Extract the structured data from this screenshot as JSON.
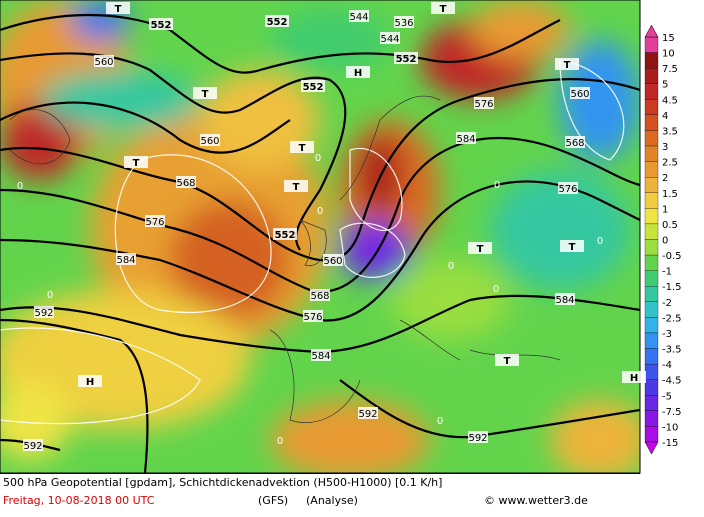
{
  "map": {
    "labels": [
      "552",
      "552",
      "552",
      "552",
      "552",
      "560",
      "560",
      "560",
      "560",
      "568",
      "568",
      "568",
      "576",
      "576",
      "576",
      "576",
      "584",
      "584",
      "584",
      "584",
      "592",
      "592",
      "592",
      "592",
      "544",
      "544",
      "536",
      "T",
      "T",
      "T",
      "T",
      "T",
      "T",
      "T",
      "T",
      "T",
      "T",
      "H",
      "H",
      "H",
      "0",
      "0",
      "0",
      "0",
      "0",
      "0",
      "0",
      "0",
      "0",
      "0"
    ],
    "legend": [
      {
        "label": "15",
        "color": "#e0409a"
      },
      {
        "label": "10",
        "color": "#8e1414"
      },
      {
        "label": "7.5",
        "color": "#a81c1c"
      },
      {
        "label": "5",
        "color": "#c02828"
      },
      {
        "label": "4.5",
        "color": "#cc3a22"
      },
      {
        "label": "4",
        "color": "#d45220"
      },
      {
        "label": "3.5",
        "color": "#dc6a20"
      },
      {
        "label": "3",
        "color": "#e28228"
      },
      {
        "label": "2.5",
        "color": "#e89a30"
      },
      {
        "label": "2",
        "color": "#eeb43a"
      },
      {
        "label": "1.5",
        "color": "#f0cc40"
      },
      {
        "label": "1",
        "color": "#f0e444"
      },
      {
        "label": "0.5",
        "color": "#c8e438"
      },
      {
        "label": "0",
        "color": "#9ade40"
      },
      {
        "label": "-0.5",
        "color": "#62d44c"
      },
      {
        "label": "-1",
        "color": "#40cc70"
      },
      {
        "label": "-1.5",
        "color": "#34c8a0"
      },
      {
        "label": "-2",
        "color": "#30c4c8"
      },
      {
        "label": "-2.5",
        "color": "#30b4e8"
      },
      {
        "label": "-3",
        "color": "#3094f0"
      },
      {
        "label": "-3.5",
        "color": "#3474f0"
      },
      {
        "label": "-4",
        "color": "#3c54e8"
      },
      {
        "label": "-4.5",
        "color": "#4c38e4"
      },
      {
        "label": "-5",
        "color": "#6828e4"
      },
      {
        "label": "-7.5",
        "color": "#8818e4"
      },
      {
        "label": "-10",
        "color": "#a80ce8"
      },
      {
        "label": "-15",
        "color": "#c800f0"
      }
    ]
  },
  "footer": {
    "title": "500 hPa Geopotential [gpdam], Schichtdickenadvektion (H500-H1000) [0.1 K/h]",
    "date": "Freitag, 10-08-2018  00 UTC",
    "model": "(GFS)",
    "run": "(Analyse)",
    "credit": "© www.wetter3.de"
  }
}
